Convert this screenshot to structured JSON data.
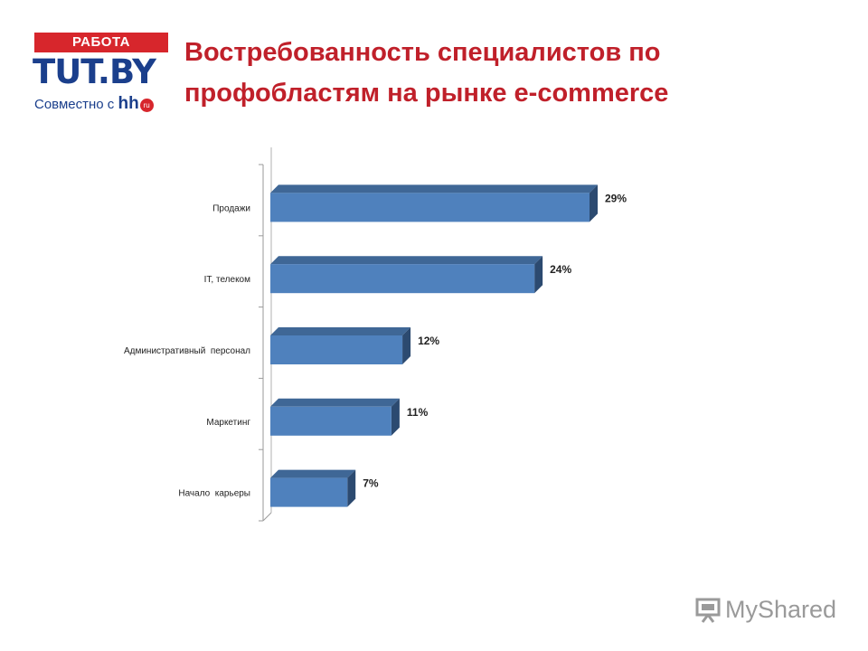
{
  "logo": {
    "badge": "РАБОТА",
    "brand": "TUT.BY",
    "partner_prefix": "Совместно с",
    "partner_hh": "hh",
    "partner_ru": "ru"
  },
  "title": "Востребованность специалистов по профобластям на рынке e-commerce",
  "watermark": "MyShared",
  "colors": {
    "title": "#c0202a",
    "bar_front": "#4f81bd",
    "bar_top": "#3f6796",
    "bar_side": "#2c4a70"
  },
  "chart_data": {
    "type": "bar",
    "orientation": "horizontal",
    "three_d": true,
    "categories": [
      "Продажи",
      "IT, телеком",
      "Административный  персонал",
      "Маркетинг",
      "Начало  карьеры"
    ],
    "values": [
      29,
      24,
      12,
      11,
      7
    ],
    "data_labels": [
      "29%",
      "24%",
      "12%",
      "11%",
      "7%"
    ],
    "xlim": [
      0,
      32
    ],
    "grid": false,
    "legend": "none"
  }
}
